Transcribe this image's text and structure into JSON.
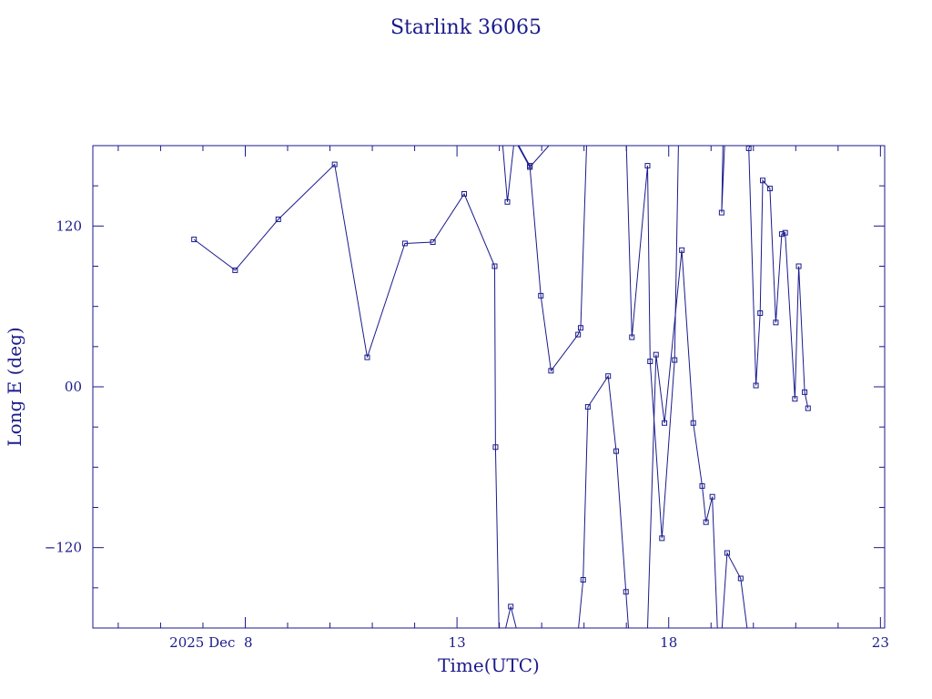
{
  "chart_data": {
    "type": "line",
    "title": "Starlink 36065",
    "xlabel": "Time(UTC)",
    "ylabel": "Long E (deg)",
    "x_unit": "day of December 2025",
    "xlim": [
      4.4,
      23.1
    ],
    "ylim": [
      -180,
      180
    ],
    "x_ticks": [
      {
        "value": 8,
        "label": "2025 Dec  8"
      },
      {
        "value": 13,
        "label": "13"
      },
      {
        "value": 18,
        "label": "18"
      },
      {
        "value": 23,
        "label": "23"
      }
    ],
    "y_ticks": [
      {
        "value": 120,
        "label": "120"
      },
      {
        "value": 0,
        "label": "00"
      },
      {
        "value": -120,
        "label": "−120"
      }
    ],
    "grid": false,
    "marker": "square",
    "color": "#1a1a8c",
    "series": [
      {
        "x": [
          6.79,
          7.76,
          8.78,
          10.11,
          10.88,
          11.77,
          12.43,
          13.17,
          13.89,
          13.91,
          13.99
        ],
        "y": [
          110,
          87,
          125,
          166,
          22,
          107,
          108,
          144,
          90,
          -45,
          -180
        ]
      },
      {
        "x": [
          14.08,
          14.19,
          14.34,
          14.44,
          14.72,
          15.17
        ],
        "y": [
          180,
          138,
          180,
          180,
          164,
          180
        ]
      },
      {
        "x": [
          14.15,
          14.27,
          14.4
        ],
        "y": [
          -180,
          -164,
          -180
        ]
      },
      {
        "x": [
          14.46,
          14.72,
          14.98,
          15.22,
          15.86,
          15.92,
          16.06
        ],
        "y": [
          180,
          165,
          68,
          12,
          39,
          44,
          180
        ]
      },
      {
        "x": [
          15.87,
          15.98,
          16.09,
          16.57,
          16.76,
          16.99,
          17.05
        ],
        "y": [
          -180,
          -144,
          -15,
          8,
          -48,
          -153,
          -180
        ]
      },
      {
        "x": [
          17.0,
          17.13,
          17.5,
          17.56,
          17.84,
          18.14,
          18.23
        ],
        "y": [
          180,
          37,
          165,
          19,
          -113,
          20,
          180
        ]
      },
      {
        "x": [
          17.5,
          17.7,
          17.9,
          18.31,
          18.58,
          18.79,
          18.88,
          19.03,
          19.15
        ],
        "y": [
          -180,
          24,
          -27,
          102,
          -27,
          -74,
          -101,
          -82,
          -180
        ]
      },
      {
        "x": [
          19.28,
          19.25,
          19.32
        ],
        "y": [
          180,
          130,
          180
        ]
      },
      {
        "x": [
          19.26,
          19.38,
          19.7,
          19.85
        ],
        "y": [
          -180,
          -124,
          -143,
          -180
        ]
      },
      {
        "x": [
          19.93,
          19.89,
          20.06,
          20.16,
          20.22,
          20.39,
          20.53,
          20.67,
          20.75,
          20.98,
          21.07,
          21.21,
          21.29
        ],
        "y": [
          180,
          178,
          1,
          55,
          154,
          148,
          48,
          114,
          115,
          -9,
          90,
          -4,
          -16
        ]
      }
    ]
  }
}
